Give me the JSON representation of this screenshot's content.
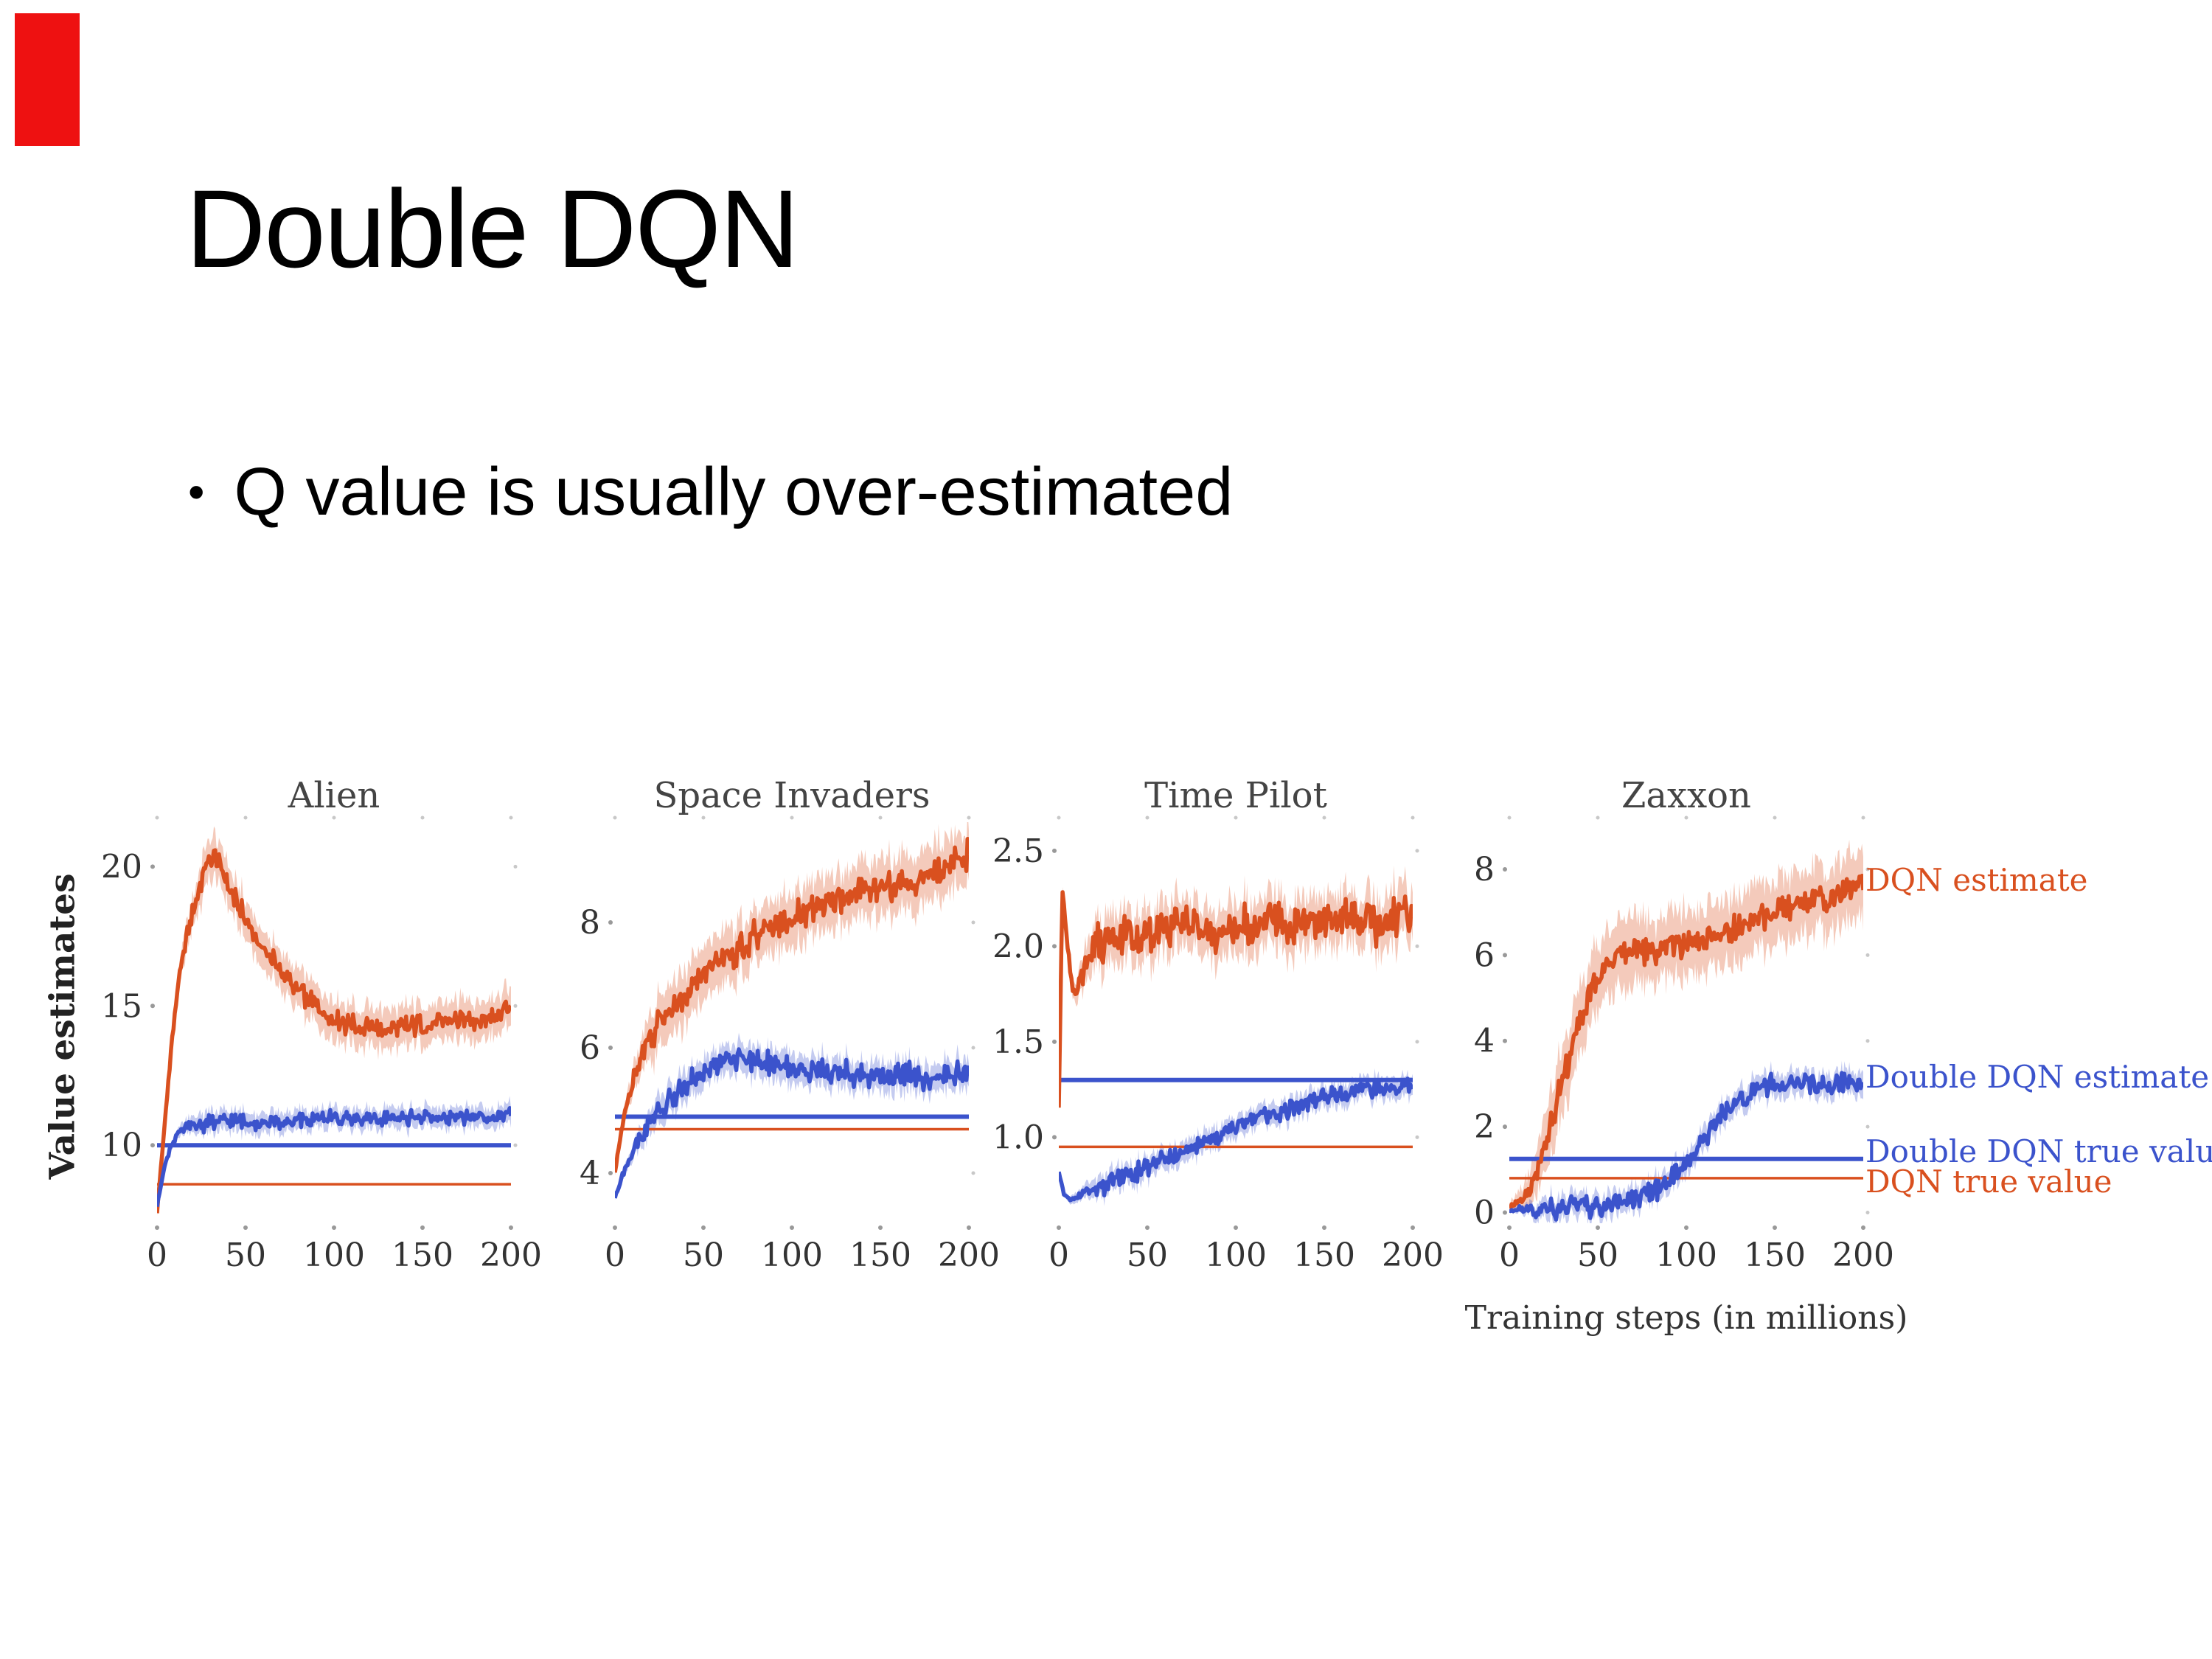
{
  "slide": {
    "title": "Double DQN",
    "bullet_marker": "•",
    "bullet": "Q value is usually over-estimated"
  },
  "colors": {
    "accent_red": "#ee1111",
    "dqn_orange": "#d9501f",
    "double_dqn_blue": "#3b53cc",
    "figure_text": "#333333"
  },
  "figure": {
    "ylabel": "Value estimates",
    "xlabel": "Training steps (in millions)",
    "legend": [
      {
        "label": "DQN estimate",
        "color": "#d9501f",
        "at_value": 7.75
      },
      {
        "label": "Double DQN estimate",
        "color": "#3b53cc",
        "at_value": 3.15
      },
      {
        "label": "Double DQN true value",
        "color": "#3b53cc",
        "at_value": 1.42
      },
      {
        "label": "DQN true value",
        "color": "#d9501f",
        "at_value": 0.72
      }
    ]
  },
  "chart_data": [
    {
      "type": "line",
      "title": "Alien",
      "xlim": [
        0,
        200
      ],
      "xticks": [
        0,
        50,
        100,
        150,
        200
      ],
      "ylim": [
        7.2,
        21.6
      ],
      "yticks": [
        10,
        15,
        20
      ],
      "series": [
        {
          "name": "DQN estimate",
          "color": "#d9501f",
          "width": 5.5,
          "band": 0.9,
          "noise": 0.45,
          "x": [
            0,
            4,
            8,
            12,
            16,
            20,
            24,
            28,
            32,
            36,
            40,
            50,
            60,
            70,
            80,
            90,
            100,
            115,
            130,
            145,
            160,
            175,
            190,
            200
          ],
          "y": [
            7.6,
            10.5,
            13.5,
            15.8,
            17.3,
            18.4,
            19.3,
            20.1,
            20.4,
            19.9,
            19.3,
            18.1,
            17.1,
            16.2,
            15.5,
            15.0,
            14.5,
            14.2,
            14.2,
            14.3,
            14.4,
            14.5,
            14.6,
            15.1
          ]
        },
        {
          "name": "Double DQN estimate",
          "color": "#3b53cc",
          "width": 5.5,
          "band": 0.45,
          "noise": 0.32,
          "x": [
            0,
            4,
            8,
            12,
            16,
            20,
            30,
            40,
            60,
            80,
            100,
            120,
            140,
            160,
            180,
            200
          ],
          "y": [
            7.8,
            9.2,
            10.0,
            10.4,
            10.6,
            10.7,
            10.8,
            10.9,
            10.8,
            10.9,
            11.0,
            10.9,
            11.0,
            11.0,
            11.0,
            11.1
          ]
        }
      ],
      "hlines": [
        {
          "name": "Double DQN true value",
          "color": "#3b53cc",
          "value": 10.0,
          "width": 6
        },
        {
          "name": "DQN true value",
          "color": "#d9501f",
          "value": 8.6,
          "width": 3.5
        }
      ]
    },
    {
      "type": "line",
      "title": "Space Invaders",
      "xlim": [
        0,
        200
      ],
      "xticks": [
        0,
        50,
        100,
        150,
        200
      ],
      "ylim": [
        3.2,
        9.6
      ],
      "yticks": [
        4,
        6,
        8
      ],
      "series": [
        {
          "name": "DQN estimate",
          "color": "#d9501f",
          "width": 5.5,
          "band": 0.55,
          "noise": 0.3,
          "x": [
            0,
            5,
            10,
            15,
            20,
            30,
            40,
            50,
            60,
            80,
            100,
            120,
            140,
            160,
            180,
            200
          ],
          "y": [
            4.0,
            4.9,
            5.5,
            5.9,
            6.2,
            6.6,
            6.9,
            7.2,
            7.4,
            7.8,
            8.05,
            8.3,
            8.5,
            8.6,
            8.75,
            9.1
          ]
        },
        {
          "name": "Double DQN estimate",
          "color": "#3b53cc",
          "width": 5.5,
          "band": 0.3,
          "noise": 0.25,
          "x": [
            0,
            5,
            10,
            15,
            20,
            30,
            40,
            50,
            60,
            70,
            80,
            100,
            120,
            140,
            160,
            180,
            200
          ],
          "y": [
            3.6,
            4.0,
            4.35,
            4.6,
            4.8,
            5.15,
            5.4,
            5.6,
            5.8,
            5.85,
            5.8,
            5.7,
            5.6,
            5.55,
            5.6,
            5.5,
            5.6
          ]
        }
      ],
      "hlines": [
        {
          "name": "Double DQN true value",
          "color": "#3b53cc",
          "value": 4.9,
          "width": 6
        },
        {
          "name": "DQN true value",
          "color": "#d9501f",
          "value": 4.7,
          "width": 3.5
        }
      ]
    },
    {
      "type": "line",
      "title": "Time Pilot",
      "xlim": [
        0,
        200
      ],
      "xticks": [
        0,
        50,
        100,
        150,
        200
      ],
      "ylim": [
        0.55,
        2.65
      ],
      "yticks": [
        1.0,
        1.5,
        2.0,
        2.5
      ],
      "ytick_decimals": 1,
      "series": [
        {
          "name": "DQN estimate",
          "color": "#d9501f",
          "width": 5.5,
          "band": 0.17,
          "noise": 0.13,
          "x": [
            0,
            2,
            4,
            6,
            9,
            12,
            16,
            20,
            25,
            30,
            40,
            50,
            60,
            70,
            80,
            90,
            100,
            110,
            120,
            130,
            140,
            150,
            160,
            170,
            180,
            190,
            200
          ],
          "y": [
            1.15,
            2.3,
            2.1,
            1.9,
            1.75,
            1.82,
            1.95,
            2.02,
            2.0,
            2.02,
            2.08,
            2.05,
            2.1,
            2.12,
            2.08,
            2.05,
            2.12,
            2.1,
            2.16,
            2.1,
            2.14,
            2.1,
            2.17,
            2.13,
            2.1,
            2.16,
            2.18
          ]
        },
        {
          "name": "Double DQN estimate",
          "color": "#3b53cc",
          "width": 5.5,
          "band": 0.07,
          "noise": 0.06,
          "x": [
            0,
            3,
            6,
            10,
            15,
            20,
            30,
            40,
            50,
            60,
            70,
            80,
            90,
            100,
            110,
            120,
            130,
            140,
            150,
            160,
            170,
            180,
            190,
            200
          ],
          "y": [
            0.82,
            0.7,
            0.67,
            0.69,
            0.71,
            0.73,
            0.76,
            0.8,
            0.85,
            0.88,
            0.92,
            0.96,
            1.0,
            1.04,
            1.08,
            1.12,
            1.15,
            1.18,
            1.21,
            1.23,
            1.25,
            1.26,
            1.27,
            1.28
          ]
        }
      ],
      "hlines": [
        {
          "name": "Double DQN true value",
          "color": "#3b53cc",
          "value": 1.3,
          "width": 6
        },
        {
          "name": "DQN true value",
          "color": "#d9501f",
          "value": 0.95,
          "width": 3.5
        }
      ]
    },
    {
      "type": "line",
      "title": "Zaxxon",
      "xlim": [
        0,
        200
      ],
      "xticks": [
        0,
        50,
        100,
        150,
        200
      ],
      "ylim": [
        -0.25,
        9.1
      ],
      "yticks": [
        0,
        2,
        4,
        6,
        8
      ],
      "series": [
        {
          "name": "DQN estimate",
          "color": "#d9501f",
          "width": 5.5,
          "band": 1.0,
          "noise": 0.4,
          "x": [
            0,
            8,
            15,
            22,
            28,
            34,
            40,
            46,
            52,
            58,
            64,
            70,
            80,
            90,
            100,
            110,
            120,
            130,
            140,
            150,
            160,
            170,
            180,
            190,
            200
          ],
          "y": [
            0.1,
            0.3,
            0.9,
            1.8,
            2.8,
            3.7,
            4.5,
            5.1,
            5.6,
            5.9,
            6.1,
            6.15,
            6.1,
            6.2,
            6.3,
            6.45,
            6.55,
            6.7,
            6.9,
            7.0,
            7.1,
            7.25,
            7.35,
            7.45,
            7.6
          ]
        },
        {
          "name": "Double DQN estimate",
          "color": "#3b53cc",
          "width": 5.5,
          "band": 0.35,
          "noise": 0.3,
          "x": [
            0,
            20,
            40,
            60,
            70,
            80,
            90,
            100,
            110,
            120,
            130,
            140,
            150,
            160,
            170,
            180,
            190,
            200
          ],
          "y": [
            0.05,
            0.08,
            0.12,
            0.2,
            0.3,
            0.45,
            0.7,
            1.1,
            1.7,
            2.25,
            2.65,
            2.9,
            3.0,
            3.0,
            3.05,
            3.0,
            3.05,
            3.1
          ]
        }
      ],
      "hlines": [
        {
          "name": "Double DQN true value",
          "color": "#3b53cc",
          "value": 1.25,
          "width": 6
        },
        {
          "name": "DQN true value",
          "color": "#d9501f",
          "value": 0.8,
          "width": 3.5
        }
      ]
    }
  ]
}
